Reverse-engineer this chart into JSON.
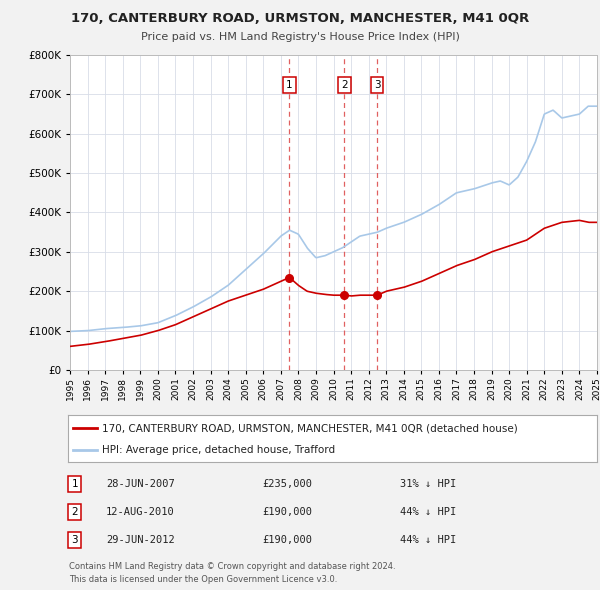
{
  "title": "170, CANTERBURY ROAD, URMSTON, MANCHESTER, M41 0QR",
  "subtitle": "Price paid vs. HM Land Registry's House Price Index (HPI)",
  "hpi_label": "HPI: Average price, detached house, Trafford",
  "price_label": "170, CANTERBURY ROAD, URMSTON, MANCHESTER, M41 0QR (detached house)",
  "footer1": "Contains HM Land Registry data © Crown copyright and database right 2024.",
  "footer2": "This data is licensed under the Open Government Licence v3.0.",
  "transactions": [
    {
      "num": 1,
      "date": "28-JUN-2007",
      "price": 235000,
      "pct": "31% ↓ HPI",
      "x": 2007.49
    },
    {
      "num": 2,
      "date": "12-AUG-2010",
      "price": 190000,
      "pct": "44% ↓ HPI",
      "x": 2010.62
    },
    {
      "num": 3,
      "date": "29-JUN-2012",
      "price": 190000,
      "pct": "44% ↓ HPI",
      "x": 2012.49
    }
  ],
  "hpi_color": "#a8c8e8",
  "price_color": "#cc0000",
  "dot_color": "#cc0000",
  "vline_color": "#e06060",
  "background_color": "#f2f2f2",
  "plot_bg_color": "#ffffff",
  "grid_color": "#d8dde8",
  "ylim": [
    0,
    800000
  ],
  "xlim_start": 1995,
  "xlim_end": 2025,
  "hpi_anchors_x": [
    1995,
    1996,
    1997,
    1998,
    1999,
    2000,
    2001,
    2002,
    2003,
    2004,
    2005,
    2006,
    2007.0,
    2007.5,
    2008.0,
    2008.5,
    2009.0,
    2009.5,
    2010.0,
    2010.5,
    2011.0,
    2011.5,
    2012.0,
    2012.5,
    2013.0,
    2014.0,
    2015.0,
    2016.0,
    2017.0,
    2018.0,
    2019.0,
    2019.5,
    2020.0,
    2020.5,
    2021.0,
    2021.5,
    2022.0,
    2022.5,
    2023.0,
    2023.5,
    2024.0,
    2024.5,
    2025.0
  ],
  "hpi_anchors_y": [
    98000,
    100000,
    105000,
    108000,
    112000,
    120000,
    138000,
    160000,
    185000,
    215000,
    255000,
    295000,
    340000,
    355000,
    345000,
    310000,
    285000,
    290000,
    300000,
    310000,
    325000,
    340000,
    345000,
    350000,
    360000,
    375000,
    395000,
    420000,
    450000,
    460000,
    475000,
    480000,
    470000,
    490000,
    530000,
    580000,
    650000,
    660000,
    640000,
    645000,
    650000,
    670000,
    670000
  ],
  "price_anchors_x": [
    1995,
    1996,
    1997,
    1998,
    1999,
    2000,
    2001,
    2002,
    2003,
    2004,
    2005,
    2006,
    2006.5,
    2007.0,
    2007.49,
    2008.0,
    2008.5,
    2009.0,
    2009.5,
    2010.0,
    2010.62,
    2011.0,
    2011.5,
    2012.0,
    2012.49,
    2013.0,
    2014.0,
    2015.0,
    2016.0,
    2017.0,
    2018.0,
    2019.0,
    2020.0,
    2021.0,
    2022.0,
    2023.0,
    2024.0,
    2024.5,
    2025.0
  ],
  "price_anchors_y": [
    60000,
    65000,
    72000,
    80000,
    88000,
    100000,
    115000,
    135000,
    155000,
    175000,
    190000,
    205000,
    215000,
    225000,
    235000,
    215000,
    200000,
    195000,
    192000,
    190000,
    190000,
    188000,
    190000,
    190000,
    190000,
    200000,
    210000,
    225000,
    245000,
    265000,
    280000,
    300000,
    315000,
    330000,
    360000,
    375000,
    380000,
    375000,
    375000
  ]
}
